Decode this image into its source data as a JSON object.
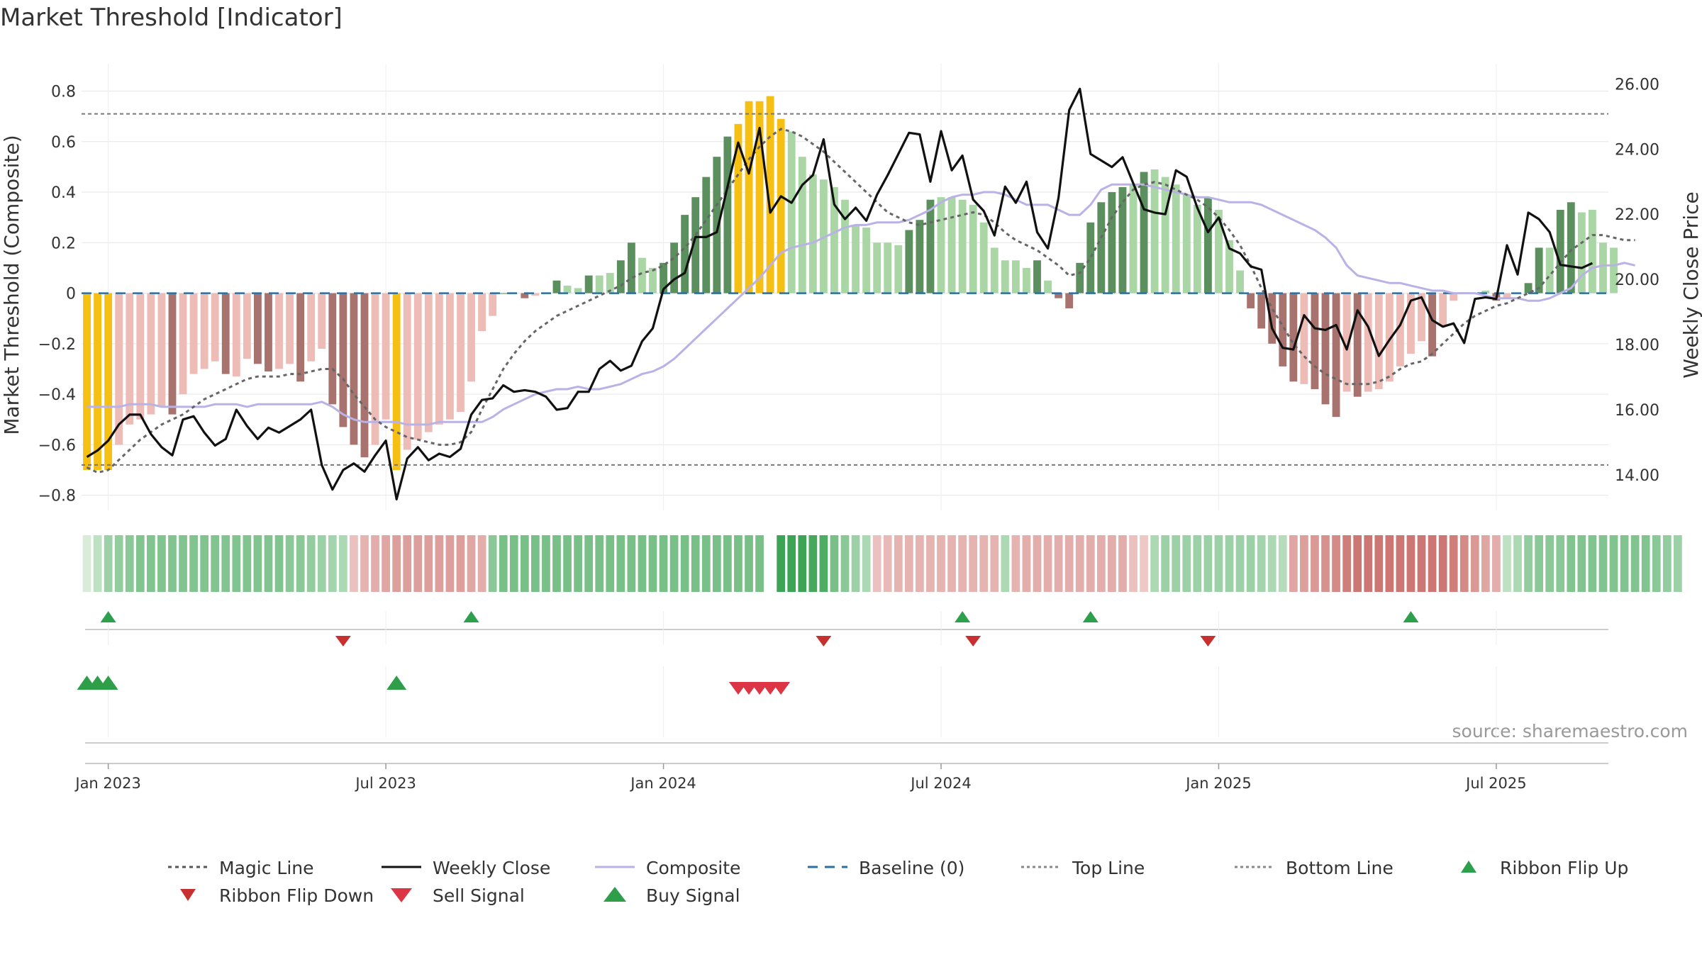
{
  "title": "Market Threshold [Indicator]",
  "source_note": "source: sharemaestro.com",
  "colors": {
    "bar_yellow": "#f5bf13",
    "bar_pos_dark": "#5b8f5e",
    "bar_pos_light": "#aad6a6",
    "bar_neg_dark": "#a8736e",
    "bar_neg_light": "#eebcb7",
    "weekly_close": "#111111",
    "composite": "#b9b2e6",
    "magic_line": "#666666",
    "baseline": "#2b6fa3",
    "ribbon_up": "#2ca04c",
    "ribbon_down": "#c8302f",
    "sell": "#dc3545",
    "buy": "#2e9e48"
  },
  "chart_data": {
    "type": "bar",
    "title": "Market Threshold [Indicator]",
    "ylabel": "Market Threshold (Composite)",
    "y2label": "Weekly Close Price",
    "ylim": [
      -0.86,
      0.88
    ],
    "y2lim": [
      12.91,
      26.4
    ],
    "yticks": [
      -0.8,
      -0.6,
      -0.4,
      -0.2,
      0,
      0.2,
      0.4,
      0.6,
      0.8
    ],
    "ytick_labels": [
      "−0.8",
      "−0.6",
      "−0.4",
      "−0.2",
      "0",
      "0.2",
      "0.4",
      "0.6",
      "0.8"
    ],
    "y2ticks": [
      14,
      16,
      18,
      20,
      22,
      24,
      26
    ],
    "y2tick_labels": [
      "14.00",
      "16.00",
      "18.00",
      "20.00",
      "22.00",
      "24.00",
      "26.00"
    ],
    "x_ticks": [
      "Jan 2023",
      "Jul 2023",
      "Jan 2024",
      "Jul 2024",
      "Jan 2025",
      "Jul 2025"
    ],
    "x_tick_weeks": [
      2,
      28,
      54,
      80,
      106,
      132
    ],
    "top_line": 0.71,
    "bottom_line": -0.68,
    "grid": true,
    "legend_position": "bottom",
    "legend": [
      "Magic Line",
      "Weekly Close",
      "Composite",
      "Baseline (0)",
      "Top Line",
      "Bottom Line",
      "Ribbon Flip Up",
      "Ribbon Flip Down",
      "Sell Signal",
      "Buy Signal"
    ],
    "weeks": 143,
    "composite_bars": [
      -0.7,
      -0.7,
      -0.7,
      -0.6,
      -0.52,
      -0.5,
      -0.48,
      -0.45,
      -0.48,
      -0.4,
      -0.32,
      -0.3,
      -0.27,
      -0.32,
      -0.33,
      -0.26,
      -0.28,
      -0.31,
      -0.3,
      -0.28,
      -0.35,
      -0.27,
      -0.22,
      -0.44,
      -0.53,
      -0.6,
      -0.65,
      -0.6,
      -0.5,
      -0.7,
      -0.62,
      -0.58,
      -0.55,
      -0.52,
      -0.5,
      -0.47,
      -0.35,
      -0.15,
      -0.09,
      0,
      0,
      -0.02,
      -0.01,
      0,
      0.05,
      0.03,
      0.02,
      0.07,
      0.07,
      0.08,
      0.13,
      0.2,
      0.14,
      0.1,
      0.12,
      0.2,
      0.31,
      0.38,
      0.46,
      0.54,
      0.62,
      0.67,
      0.76,
      0.76,
      0.78,
      0.69,
      0.64,
      0.54,
      0.47,
      0.45,
      0.42,
      0.37,
      0.27,
      0.26,
      0.2,
      0.2,
      0.19,
      0.25,
      0.29,
      0.37,
      0.38,
      0.38,
      0.37,
      0.35,
      0.28,
      0.18,
      0.13,
      0.13,
      0.1,
      0.13,
      0.05,
      -0.02,
      -0.06,
      0.12,
      0.28,
      0.36,
      0.4,
      0.42,
      0.43,
      0.48,
      0.49,
      0.46,
      0.43,
      0.39,
      0.35,
      0.38,
      0.33,
      0.21,
      0.09,
      -0.06,
      -0.14,
      -0.2,
      -0.29,
      -0.35,
      -0.36,
      -0.38,
      -0.44,
      -0.49,
      -0.39,
      -0.41,
      -0.39,
      -0.38,
      -0.35,
      -0.29,
      -0.24,
      -0.19,
      -0.25,
      -0.13,
      -0.03,
      0,
      0,
      0.01,
      -0.03,
      -0.02,
      0,
      0.04,
      0.18,
      0.18,
      0.33,
      0.36,
      0.32,
      0.33,
      0.2,
      0.18
    ],
    "weekly_close": [
      14.55,
      14.75,
      15.05,
      15.55,
      15.85,
      15.85,
      15.25,
      14.85,
      14.6,
      15.7,
      15.8,
      15.3,
      14.9,
      15.1,
      16.0,
      15.5,
      15.1,
      15.45,
      15.3,
      15.5,
      15.7,
      16.0,
      14.3,
      13.55,
      14.15,
      14.35,
      14.1,
      14.6,
      15.05,
      13.25,
      14.5,
      14.85,
      14.45,
      14.65,
      14.55,
      14.8,
      15.85,
      16.3,
      16.35,
      16.75,
      16.55,
      16.6,
      16.55,
      16.4,
      16.0,
      16.05,
      16.55,
      16.55,
      17.25,
      17.5,
      17.2,
      17.35,
      18.1,
      18.5,
      19.7,
      20.0,
      20.2,
      21.3,
      21.3,
      21.45,
      22.85,
      24.2,
      23.25,
      24.65,
      22.05,
      22.55,
      22.35,
      22.9,
      23.2,
      24.3,
      22.3,
      21.85,
      22.2,
      21.8,
      22.6,
      23.2,
      23.85,
      24.5,
      24.45,
      23.0,
      24.55,
      23.35,
      23.8,
      22.45,
      22.1,
      21.35,
      22.85,
      22.35,
      23.0,
      21.45,
      20.95,
      22.5,
      25.2,
      25.85,
      23.85,
      23.65,
      23.45,
      23.75,
      22.95,
      22.15,
      22.05,
      22.0,
      23.35,
      23.15,
      22.2,
      21.45,
      21.9,
      20.95,
      20.8,
      20.4,
      20.3,
      18.5,
      17.9,
      17.85,
      18.9,
      18.5,
      18.45,
      18.6,
      17.85,
      19.05,
      18.55,
      17.65,
      18.15,
      18.6,
      19.35,
      19.45,
      18.75,
      18.55,
      18.65,
      18.05,
      19.4,
      19.45,
      19.4,
      21.05,
      20.15,
      22.05,
      21.85,
      21.45,
      20.45,
      20.4,
      20.35,
      20.5
    ],
    "magic_line": [
      -0.69,
      -0.71,
      -0.7,
      -0.66,
      -0.62,
      -0.58,
      -0.55,
      -0.52,
      -0.5,
      -0.48,
      -0.45,
      -0.42,
      -0.4,
      -0.38,
      -0.36,
      -0.34,
      -0.33,
      -0.33,
      -0.33,
      -0.32,
      -0.32,
      -0.31,
      -0.3,
      -0.3,
      -0.34,
      -0.4,
      -0.45,
      -0.5,
      -0.53,
      -0.55,
      -0.57,
      -0.58,
      -0.59,
      -0.6,
      -0.6,
      -0.59,
      -0.55,
      -0.46,
      -0.38,
      -0.3,
      -0.24,
      -0.19,
      -0.15,
      -0.12,
      -0.09,
      -0.07,
      -0.05,
      -0.03,
      -0.01,
      0.01,
      0.03,
      0.06,
      0.08,
      0.09,
      0.11,
      0.14,
      0.18,
      0.23,
      0.29,
      0.35,
      0.41,
      0.47,
      0.53,
      0.58,
      0.62,
      0.65,
      0.64,
      0.62,
      0.59,
      0.56,
      0.52,
      0.48,
      0.44,
      0.4,
      0.36,
      0.32,
      0.3,
      0.28,
      0.27,
      0.28,
      0.29,
      0.3,
      0.31,
      0.32,
      0.31,
      0.28,
      0.24,
      0.21,
      0.19,
      0.17,
      0.14,
      0.11,
      0.07,
      0.08,
      0.14,
      0.22,
      0.3,
      0.36,
      0.41,
      0.43,
      0.44,
      0.43,
      0.41,
      0.39,
      0.37,
      0.34,
      0.3,
      0.25,
      0.19,
      0.11,
      0.02,
      -0.06,
      -0.13,
      -0.2,
      -0.25,
      -0.29,
      -0.32,
      -0.34,
      -0.36,
      -0.36,
      -0.36,
      -0.35,
      -0.33,
      -0.3,
      -0.28,
      -0.27,
      -0.24,
      -0.2,
      -0.16,
      -0.12,
      -0.09,
      -0.07,
      -0.05,
      -0.04,
      -0.02,
      0,
      0.02,
      0.07,
      0.12,
      0.17,
      0.2,
      0.23,
      0.23,
      0.22,
      0.21,
      0.21
    ],
    "composite_line": [
      -0.45,
      -0.45,
      -0.45,
      -0.45,
      -0.44,
      -0.44,
      -0.44,
      -0.45,
      -0.45,
      -0.45,
      -0.45,
      -0.45,
      -0.44,
      -0.44,
      -0.44,
      -0.45,
      -0.44,
      -0.44,
      -0.44,
      -0.44,
      -0.44,
      -0.44,
      -0.43,
      -0.45,
      -0.48,
      -0.5,
      -0.51,
      -0.51,
      -0.51,
      -0.51,
      -0.52,
      -0.52,
      -0.52,
      -0.51,
      -0.51,
      -0.51,
      -0.51,
      -0.51,
      -0.49,
      -0.46,
      -0.44,
      -0.42,
      -0.4,
      -0.39,
      -0.38,
      -0.38,
      -0.37,
      -0.38,
      -0.38,
      -0.37,
      -0.36,
      -0.34,
      -0.32,
      -0.31,
      -0.29,
      -0.26,
      -0.22,
      -0.18,
      -0.14,
      -0.1,
      -0.06,
      -0.02,
      0.02,
      0.06,
      0.11,
      0.16,
      0.18,
      0.19,
      0.2,
      0.22,
      0.24,
      0.26,
      0.27,
      0.27,
      0.28,
      0.28,
      0.28,
      0.29,
      0.31,
      0.33,
      0.36,
      0.38,
      0.39,
      0.39,
      0.4,
      0.4,
      0.39,
      0.37,
      0.35,
      0.35,
      0.35,
      0.33,
      0.31,
      0.31,
      0.35,
      0.41,
      0.43,
      0.43,
      0.43,
      0.43,
      0.42,
      0.41,
      0.4,
      0.39,
      0.38,
      0.38,
      0.37,
      0.36,
      0.36,
      0.36,
      0.35,
      0.33,
      0.31,
      0.29,
      0.27,
      0.25,
      0.22,
      0.18,
      0.11,
      0.07,
      0.06,
      0.05,
      0.04,
      0.04,
      0.03,
      0.02,
      0.01,
      0.01,
      0,
      0,
      0,
      -0.01,
      -0.02,
      -0.02,
      -0.02,
      -0.03,
      -0.03,
      -0.02,
      0,
      0.02,
      0.07,
      0.1,
      0.11,
      0.11,
      0.12,
      0.11
    ],
    "ribbon": [
      0.05,
      0.2,
      0.4,
      0.45,
      0.5,
      0.55,
      0.55,
      0.55,
      0.55,
      0.55,
      0.55,
      0.55,
      0.55,
      0.55,
      0.55,
      0.55,
      0.55,
      0.55,
      0.55,
      0.5,
      0.5,
      0.45,
      0.4,
      0.35,
      0.3,
      -0.2,
      -0.3,
      -0.35,
      -0.4,
      -0.45,
      -0.45,
      -0.45,
      -0.45,
      -0.45,
      -0.45,
      -0.45,
      -0.4,
      -0.35,
      0.5,
      0.6,
      0.6,
      0.6,
      0.6,
      0.6,
      0.6,
      0.6,
      0.6,
      0.6,
      0.6,
      0.6,
      0.6,
      0.6,
      0.6,
      0.6,
      0.6,
      0.6,
      0.6,
      0.6,
      0.6,
      0.6,
      0.6,
      0.6,
      0.6,
      0.6,
      null,
      0.95,
      0.95,
      0.95,
      0.9,
      0.85,
      0.6,
      0.5,
      0.4,
      0.3,
      -0.2,
      -0.25,
      -0.3,
      -0.3,
      -0.3,
      -0.3,
      -0.3,
      -0.3,
      -0.3,
      -0.3,
      -0.3,
      -0.3,
      0.3,
      -0.3,
      -0.35,
      -0.35,
      -0.35,
      -0.35,
      -0.35,
      -0.35,
      -0.35,
      -0.35,
      -0.35,
      -0.35,
      -0.2,
      -0.15,
      0.3,
      0.4,
      0.4,
      0.4,
      0.4,
      0.4,
      0.4,
      0.4,
      0.4,
      0.4,
      0.35,
      0.3,
      0.25,
      -0.4,
      -0.45,
      -0.5,
      -0.55,
      -0.6,
      -0.7,
      -0.75,
      -0.75,
      -0.75,
      -0.75,
      -0.75,
      -0.75,
      -0.75,
      -0.75,
      -0.75,
      -0.7,
      -0.6,
      -0.5,
      -0.4,
      -0.35,
      0.2,
      0.3,
      0.45,
      0.5,
      0.5,
      0.5,
      0.55,
      0.55,
      0.55,
      0.55,
      0.55,
      0.55,
      0.55,
      0.55,
      0.5,
      0.45,
      0.4
    ],
    "ribbon_flip_up_weeks": [
      2,
      36,
      82,
      94,
      124
    ],
    "ribbon_flip_down_weeks": [
      24,
      69,
      83,
      105
    ],
    "buy_signal_weeks": [
      0,
      1,
      2,
      29
    ],
    "sell_signal_weeks": [
      61,
      62,
      63,
      64,
      65
    ]
  }
}
